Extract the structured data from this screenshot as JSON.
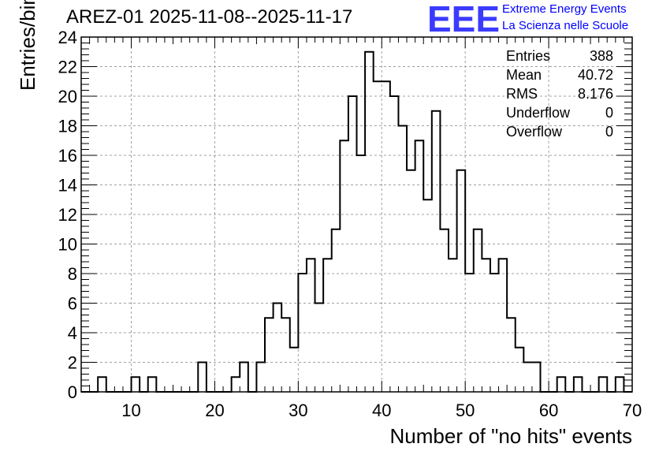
{
  "title": "AREZ-01 2025-11-08--2025-11-17",
  "logo": {
    "mark": "EEE",
    "line1": "Extreme Energy Events",
    "line2": "La Scienza nelle Scuole",
    "color": "#0000ff"
  },
  "stats": [
    {
      "name": "Entries",
      "value": "388"
    },
    {
      "name": "Mean",
      "value": "40.72"
    },
    {
      "name": "RMS",
      "value": "8.176"
    },
    {
      "name": "Underflow",
      "value": "0"
    },
    {
      "name": "Overflow",
      "value": "0"
    }
  ],
  "chart_data": {
    "type": "histogram",
    "title": "AREZ-01 2025-11-08--2025-11-17",
    "xlabel": "Number of \"no hits\" events",
    "ylabel": "Entries/bin",
    "xlim": [
      4,
      70
    ],
    "ylim": [
      0,
      24
    ],
    "bin_width": 1,
    "grid": true,
    "x_ticks": [
      10,
      20,
      30,
      40,
      50,
      60,
      70
    ],
    "y_ticks": [
      0,
      2,
      4,
      6,
      8,
      10,
      12,
      14,
      16,
      18,
      20,
      22,
      24
    ],
    "bins": [
      {
        "x0": 6,
        "count": 1
      },
      {
        "x0": 10,
        "count": 1
      },
      {
        "x0": 12,
        "count": 1
      },
      {
        "x0": 18,
        "count": 2
      },
      {
        "x0": 22,
        "count": 1
      },
      {
        "x0": 23,
        "count": 2
      },
      {
        "x0": 25,
        "count": 2
      },
      {
        "x0": 26,
        "count": 5
      },
      {
        "x0": 27,
        "count": 6
      },
      {
        "x0": 28,
        "count": 5
      },
      {
        "x0": 29,
        "count": 3
      },
      {
        "x0": 30,
        "count": 8
      },
      {
        "x0": 31,
        "count": 9
      },
      {
        "x0": 32,
        "count": 6
      },
      {
        "x0": 33,
        "count": 9
      },
      {
        "x0": 34,
        "count": 11
      },
      {
        "x0": 35,
        "count": 17
      },
      {
        "x0": 36,
        "count": 20
      },
      {
        "x0": 37,
        "count": 16
      },
      {
        "x0": 38,
        "count": 23
      },
      {
        "x0": 39,
        "count": 21
      },
      {
        "x0": 40,
        "count": 21
      },
      {
        "x0": 41,
        "count": 20
      },
      {
        "x0": 42,
        "count": 18
      },
      {
        "x0": 43,
        "count": 15
      },
      {
        "x0": 44,
        "count": 17
      },
      {
        "x0": 45,
        "count": 13
      },
      {
        "x0": 46,
        "count": 19
      },
      {
        "x0": 47,
        "count": 11
      },
      {
        "x0": 48,
        "count": 9
      },
      {
        "x0": 49,
        "count": 15
      },
      {
        "x0": 50,
        "count": 8
      },
      {
        "x0": 51,
        "count": 11
      },
      {
        "x0": 52,
        "count": 9
      },
      {
        "x0": 53,
        "count": 8
      },
      {
        "x0": 54,
        "count": 9
      },
      {
        "x0": 55,
        "count": 5
      },
      {
        "x0": 56,
        "count": 3
      },
      {
        "x0": 57,
        "count": 2
      },
      {
        "x0": 58,
        "count": 2
      },
      {
        "x0": 61,
        "count": 1
      },
      {
        "x0": 63,
        "count": 1
      },
      {
        "x0": 66,
        "count": 1
      },
      {
        "x0": 68,
        "count": 1
      }
    ]
  }
}
